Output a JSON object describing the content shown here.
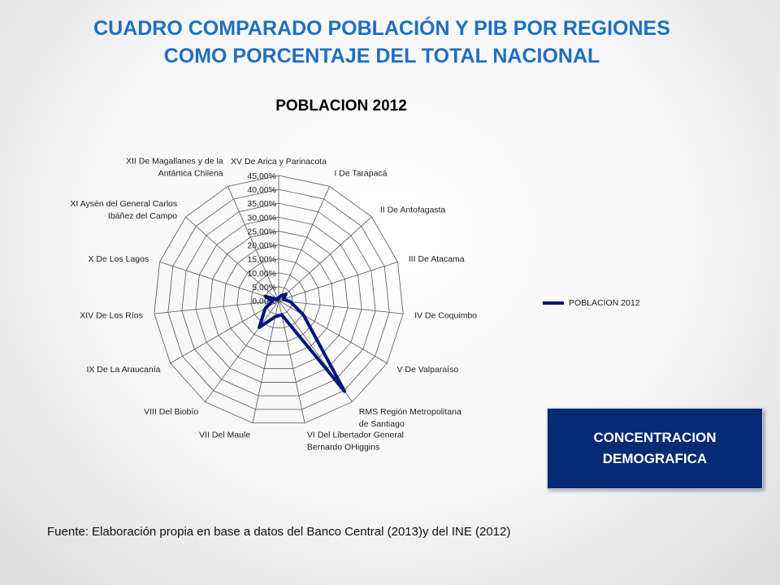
{
  "slide": {
    "title_line1": "CUADRO COMPARADO POBLACIÓN Y PIB POR REGIONES",
    "title_line2": "COMO PORCENTAJE DEL TOTAL NACIONAL",
    "badge_line1": "CONCENTRACION",
    "badge_line2": "DEMOGRAFICA",
    "source": "Fuente: Elaboración propia en base a datos del Banco Central  (2013)y del INE (2012)"
  },
  "chart_data": {
    "type": "radar",
    "title": "POBLACION 2012",
    "rlim": [
      0,
      45
    ],
    "ticks": [
      "0,00%",
      "5,00%",
      "10,00%",
      "15,00%",
      "20,00%",
      "25,00%",
      "30,00%",
      "35,00%",
      "40,00%",
      "45,00%"
    ],
    "tick_values": [
      0,
      5,
      10,
      15,
      20,
      25,
      30,
      35,
      40,
      45
    ],
    "grid": true,
    "legend_position": "right",
    "categories": [
      "XV De Arica y Parinacota",
      "I De Tarapacá",
      "II De Antofagasta",
      "III De Atacama",
      "IV De Coquimbo",
      "V De Valparaíso",
      "RMS Región Metropolitana de Santiago",
      "VI Del Libertador General Bernardo OHiggins",
      "VII Del Maule",
      "VIII Del Biobío",
      "IX De La Araucanía",
      "XIV De Los Ríos",
      "X De Los Lagos",
      "XI Aysén del General Carlos Ibáñez del Campo",
      "XII De Magallanes y de la Antártica Chilena"
    ],
    "category_label_lines": [
      [
        "XV De Arica y Parinacota"
      ],
      [
        "I De Tarapacá"
      ],
      [
        "II De Antofagasta"
      ],
      [
        "III De Atacama"
      ],
      [
        "IV De Coquimbo"
      ],
      [
        "V De Valparaíso"
      ],
      [
        "RMS Región Metropolitana",
        "de Santiago"
      ],
      [
        "VI Del Libertador General",
        "Bernardo OHiggins"
      ],
      [
        "VII Del Maule"
      ],
      [
        "VIII Del Biobío"
      ],
      [
        "IX De La Araucanía"
      ],
      [
        "XIV De Los Ríos"
      ],
      [
        "X De Los Lagos"
      ],
      [
        "XI Aysén del General Carlos",
        "Ibáñez del Campo"
      ],
      [
        "XII De Magallanes y de la",
        "Antártica Chilena"
      ]
    ],
    "series": [
      {
        "name": "POBLACION 2012",
        "color": "#00137f",
        "values": [
          1.0,
          1.9,
          3.5,
          1.8,
          4.3,
          10.3,
          40.3,
          5.2,
          5.9,
          11.9,
          5.6,
          2.3,
          5.1,
          0.6,
          0.9
        ]
      }
    ]
  }
}
